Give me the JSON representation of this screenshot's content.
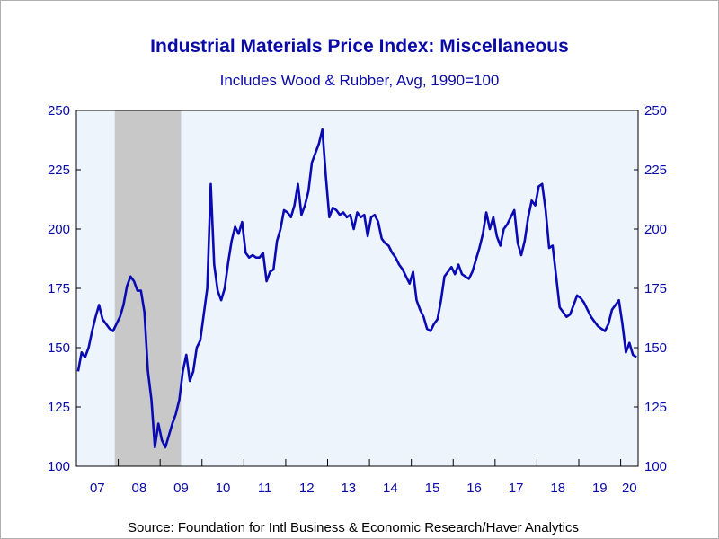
{
  "chart_data": {
    "type": "line",
    "title": "Industrial Materials Price Index: Miscellaneous",
    "subtitle": "Includes Wood & Rubber, Avg, 1990=100",
    "source": "Source:  Foundation for Intl Business & Economic Research/Haver Analytics",
    "ylim": [
      100,
      250
    ],
    "yticks": [
      "100",
      "125",
      "150",
      "175",
      "200",
      "225",
      "250"
    ],
    "xticks": [
      "07",
      "08",
      "09",
      "10",
      "11",
      "12",
      "13",
      "14",
      "15",
      "16",
      "17",
      "18",
      "19",
      "20"
    ],
    "x_start": "2007-01",
    "x_end": "2020-05",
    "recession": {
      "start": "2007-12",
      "end": "2009-06"
    },
    "colors": {
      "line": "#0a0ab4",
      "plot_bg": "#eef4fc",
      "recession": "#c8c8c8",
      "text": "#0a0aa8"
    },
    "series": [
      {
        "x": [
          "2007-01",
          "2007-02",
          "2007-03",
          "2007-04",
          "2007-05",
          "2007-06",
          "2007-07",
          "2007-08",
          "2007-09",
          "2007-10",
          "2007-11",
          "2007-12",
          "2008-01",
          "2008-02",
          "2008-03",
          "2008-04",
          "2008-05",
          "2008-06",
          "2008-07",
          "2008-08",
          "2008-09",
          "2008-10",
          "2008-11",
          "2008-12",
          "2009-01",
          "2009-02",
          "2009-03",
          "2009-04",
          "2009-05",
          "2009-06",
          "2009-07",
          "2009-08",
          "2009-09",
          "2009-10",
          "2009-11",
          "2009-12",
          "2010-01",
          "2010-02",
          "2010-03",
          "2010-04",
          "2010-05",
          "2010-06",
          "2010-07",
          "2010-08",
          "2010-09",
          "2010-10",
          "2010-11",
          "2010-12",
          "2011-01",
          "2011-02",
          "2011-03",
          "2011-04",
          "2011-05",
          "2011-06",
          "2011-07",
          "2011-08",
          "2011-09",
          "2011-10",
          "2011-11",
          "2011-12",
          "2012-01",
          "2012-02",
          "2012-03",
          "2012-04",
          "2012-05",
          "2012-06",
          "2012-07",
          "2012-08",
          "2012-09",
          "2012-10",
          "2012-11",
          "2012-12",
          "2013-01",
          "2013-02",
          "2013-03",
          "2013-04",
          "2013-05",
          "2013-06",
          "2013-07",
          "2013-08",
          "2013-09",
          "2013-10",
          "2013-11",
          "2013-12",
          "2014-01",
          "2014-02",
          "2014-03",
          "2014-04",
          "2014-05",
          "2014-06",
          "2014-07",
          "2014-08",
          "2014-09",
          "2014-10",
          "2014-11",
          "2014-12",
          "2015-01",
          "2015-02",
          "2015-03",
          "2015-04",
          "2015-05",
          "2015-06",
          "2015-07",
          "2015-08",
          "2015-09",
          "2015-10",
          "2015-11",
          "2015-12",
          "2016-01",
          "2016-02",
          "2016-03",
          "2016-04",
          "2016-05",
          "2016-06",
          "2016-07",
          "2016-08",
          "2016-09",
          "2016-10",
          "2016-11",
          "2016-12",
          "2017-01",
          "2017-02",
          "2017-03",
          "2017-04",
          "2017-05",
          "2017-06",
          "2017-07",
          "2017-08",
          "2017-09",
          "2017-10",
          "2017-11",
          "2017-12",
          "2018-01",
          "2018-02",
          "2018-03",
          "2018-04",
          "2018-05",
          "2018-06",
          "2018-07",
          "2018-08",
          "2018-09",
          "2018-10",
          "2018-11",
          "2018-12",
          "2019-01",
          "2019-02",
          "2019-03",
          "2019-04",
          "2019-05",
          "2019-06",
          "2019-07",
          "2019-08",
          "2019-09",
          "2019-10",
          "2019-11",
          "2019-12",
          "2020-01",
          "2020-02",
          "2020-03",
          "2020-04",
          "2020-05"
        ],
        "values": [
          140,
          148,
          146,
          150,
          157,
          163,
          168,
          162,
          160,
          158,
          157,
          160,
          163,
          168,
          176,
          180,
          178,
          174,
          174,
          165,
          140,
          128,
          108,
          118,
          111,
          108,
          113,
          118,
          122,
          128,
          140,
          147,
          136,
          140,
          150,
          153,
          164,
          175,
          219,
          185,
          174,
          170,
          175,
          186,
          195,
          201,
          198,
          203,
          190,
          188,
          189,
          188,
          188,
          190,
          178,
          182,
          183,
          195,
          200,
          208,
          207,
          205,
          210,
          219,
          206,
          210,
          216,
          228,
          232,
          236,
          242,
          222,
          205,
          209,
          208,
          206,
          207,
          205,
          206,
          200,
          207,
          205,
          206,
          197,
          205,
          206,
          203,
          196,
          194,
          193,
          190,
          188,
          185,
          183,
          180,
          177,
          182,
          170,
          166,
          163,
          158,
          157,
          160,
          162,
          170,
          180,
          182,
          184,
          181,
          185,
          181,
          180,
          179,
          182,
          187,
          192,
          198,
          207,
          200,
          205,
          197,
          193,
          200,
          202,
          205,
          208,
          194,
          189,
          195,
          205,
          212,
          210,
          218,
          219,
          208,
          192,
          193,
          180,
          167,
          165,
          163,
          164,
          168,
          172,
          171,
          169,
          166,
          163,
          161,
          159,
          158,
          157,
          160,
          166,
          168,
          170,
          160,
          148,
          152,
          147,
          146
        ]
      }
    ]
  }
}
